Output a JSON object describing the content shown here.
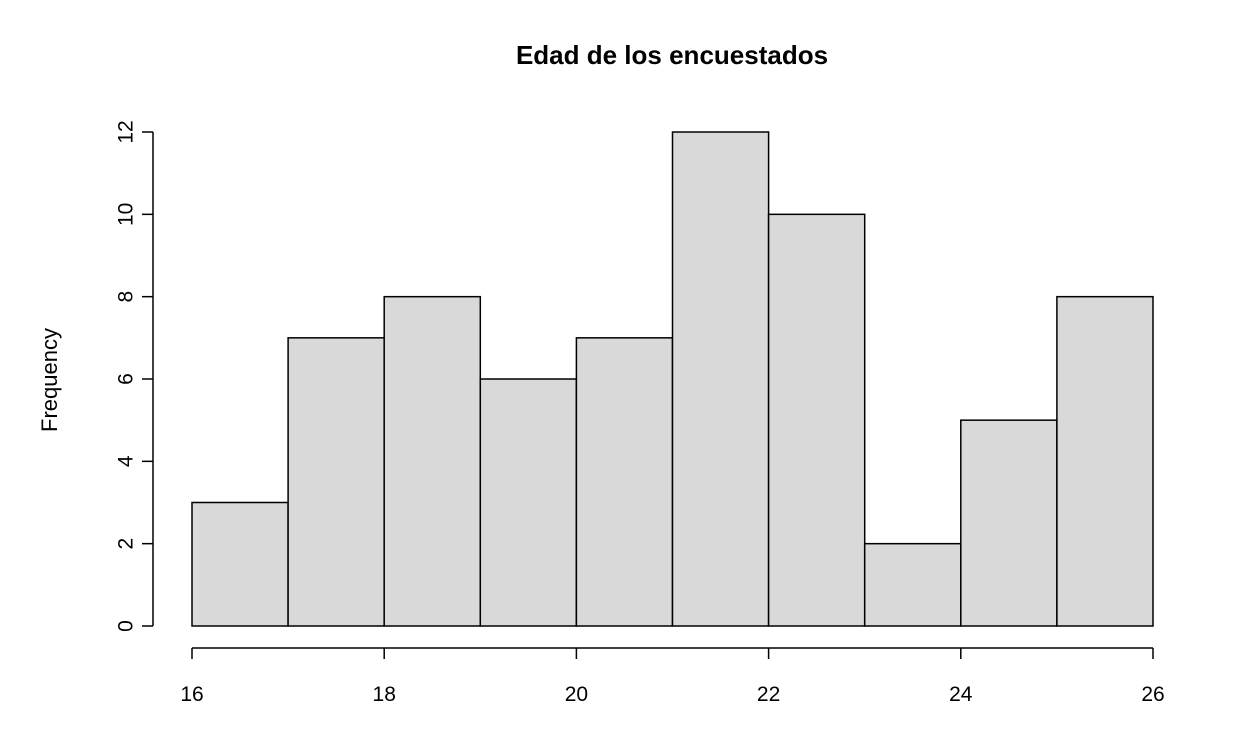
{
  "chart_data": {
    "type": "bar",
    "title": "Edad de los encuestados",
    "xlabel": "",
    "ylabel": "Frequency",
    "bins": [
      {
        "start": 16,
        "end": 17,
        "count": 3
      },
      {
        "start": 17,
        "end": 18,
        "count": 7
      },
      {
        "start": 18,
        "end": 19,
        "count": 8
      },
      {
        "start": 19,
        "end": 20,
        "count": 6
      },
      {
        "start": 20,
        "end": 21,
        "count": 7
      },
      {
        "start": 21,
        "end": 22,
        "count": 12
      },
      {
        "start": 22,
        "end": 23,
        "count": 10
      },
      {
        "start": 23,
        "end": 24,
        "count": 2
      },
      {
        "start": 24,
        "end": 25,
        "count": 5
      },
      {
        "start": 25,
        "end": 26,
        "count": 8
      }
    ],
    "x_ticks": [
      "16",
      "18",
      "20",
      "22",
      "24",
      "26"
    ],
    "y_ticks": [
      "0",
      "2",
      "4",
      "6",
      "8",
      "10",
      "12"
    ],
    "xlim": [
      16,
      26
    ],
    "ylim": [
      0,
      12
    ],
    "grid": false,
    "colors": {
      "bar_fill": "#d9d9d9",
      "bar_stroke": "#000000"
    }
  }
}
